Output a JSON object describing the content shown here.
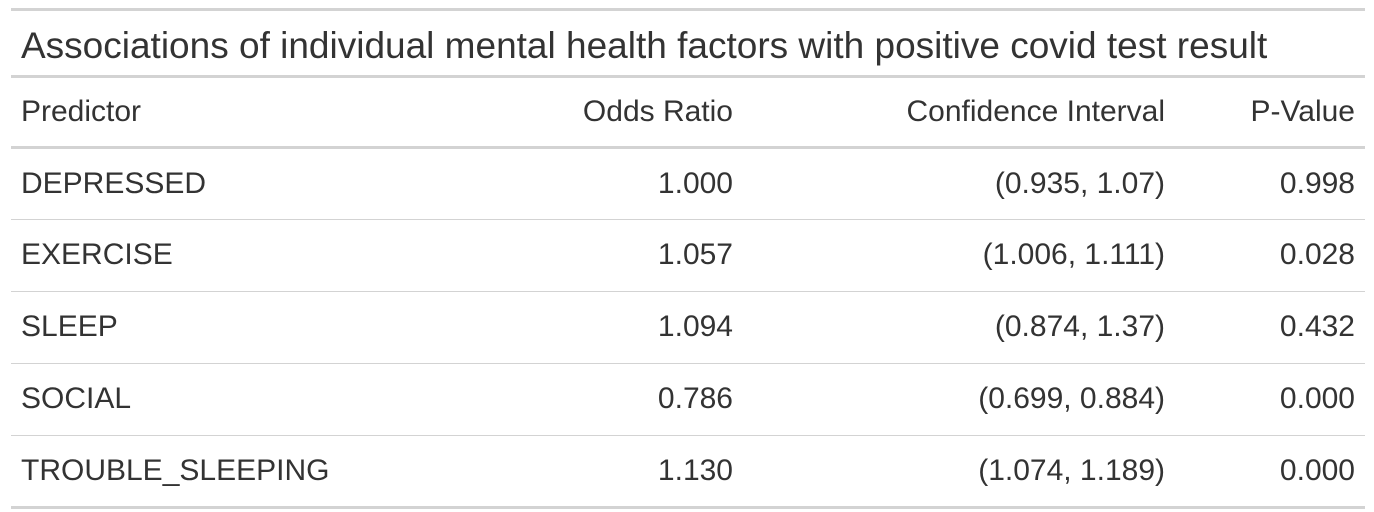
{
  "table": {
    "title": "Associations of individual mental health factors with positive covid test result",
    "columns": [
      "Predictor",
      "Odds Ratio",
      "Confidence Interval",
      "P-Value"
    ],
    "rows": [
      [
        "DEPRESSED",
        "1.000",
        "(0.935, 1.07)",
        "0.998"
      ],
      [
        "EXERCISE",
        "1.057",
        "(1.006, 1.111)",
        "0.028"
      ],
      [
        "SLEEP",
        "1.094",
        "(0.874, 1.37)",
        "0.432"
      ],
      [
        "SOCIAL",
        "0.786",
        "(0.699, 0.884)",
        "0.000"
      ],
      [
        "TROUBLE_SLEEPING",
        "1.130",
        "(1.074, 1.189)",
        "0.000"
      ]
    ]
  },
  "colors": {
    "text": "#333333",
    "rule": "#d3d3d3",
    "background": "#ffffff"
  }
}
